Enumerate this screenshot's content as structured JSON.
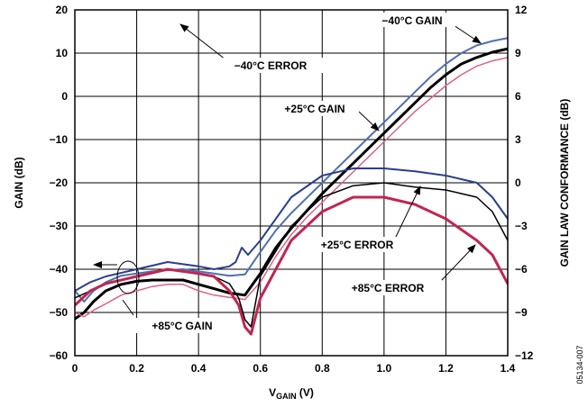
{
  "figure_id": "05134-007",
  "chart_data": {
    "type": "line",
    "xlabel_main": "V",
    "xlabel_sub": "GAIN",
    "xlabel_unit": " (V)",
    "ylabel_left": "GAIN (dB)",
    "ylabel_right": "GAIN LAW CONFORMANCE (dB)",
    "xlim": [
      0,
      1.4
    ],
    "ylim_left": [
      -60,
      20
    ],
    "ylim_right": [
      -12,
      12
    ],
    "grid": true,
    "x_ticks": [
      "0",
      "0.2",
      "0.4",
      "0.6",
      "0.8",
      "1.0",
      "1.2",
      "1.4"
    ],
    "y_left_ticks": [
      "20",
      "10",
      "0",
      "−10",
      "−20",
      "−30",
      "−40",
      "−50",
      "−60"
    ],
    "y_right_ticks": [
      "12",
      "9",
      "6",
      "3",
      "0",
      "−3",
      "−6",
      "−9",
      "−12"
    ],
    "series": [
      {
        "name": "−40°C GAIN",
        "axis": "left",
        "color": "#4f6fae",
        "width": 2,
        "points": [
          [
            0,
            -45
          ],
          [
            0.03,
            -47.5
          ],
          [
            0.06,
            -45
          ],
          [
            0.1,
            -43
          ],
          [
            0.15,
            -41.5
          ],
          [
            0.2,
            -41
          ],
          [
            0.25,
            -40.5
          ],
          [
            0.3,
            -40.2
          ],
          [
            0.35,
            -40
          ],
          [
            0.4,
            -40.5
          ],
          [
            0.45,
            -41
          ],
          [
            0.5,
            -41.5
          ],
          [
            0.55,
            -41.2
          ],
          [
            0.6,
            -36
          ],
          [
            0.65,
            -31
          ],
          [
            0.7,
            -27
          ],
          [
            0.75,
            -23.5
          ],
          [
            0.8,
            -20
          ],
          [
            0.85,
            -16.5
          ],
          [
            0.9,
            -13
          ],
          [
            0.95,
            -9.5
          ],
          [
            1.0,
            -6
          ],
          [
            1.05,
            -2.5
          ],
          [
            1.1,
            1
          ],
          [
            1.15,
            4.5
          ],
          [
            1.2,
            7.5
          ],
          [
            1.25,
            10
          ],
          [
            1.3,
            11.8
          ],
          [
            1.35,
            12.8
          ],
          [
            1.4,
            13.5
          ]
        ]
      },
      {
        "name": "+25°C GAIN",
        "axis": "left",
        "color": "#000000",
        "width": 3,
        "points": [
          [
            0,
            -51.5
          ],
          [
            0.03,
            -50
          ],
          [
            0.06,
            -47.5
          ],
          [
            0.1,
            -45
          ],
          [
            0.15,
            -43.5
          ],
          [
            0.2,
            -42.8
          ],
          [
            0.25,
            -42.5
          ],
          [
            0.3,
            -42.5
          ],
          [
            0.35,
            -42.5
          ],
          [
            0.4,
            -43.5
          ],
          [
            0.45,
            -44.5
          ],
          [
            0.5,
            -45.5
          ],
          [
            0.55,
            -46
          ],
          [
            0.6,
            -41
          ],
          [
            0.65,
            -35
          ],
          [
            0.7,
            -30.5
          ],
          [
            0.75,
            -26.5
          ],
          [
            0.8,
            -22.5
          ],
          [
            0.85,
            -19
          ],
          [
            0.9,
            -15.5
          ],
          [
            0.95,
            -12
          ],
          [
            1.0,
            -8.5
          ],
          [
            1.05,
            -5
          ],
          [
            1.1,
            -1.5
          ],
          [
            1.15,
            2
          ],
          [
            1.2,
            5
          ],
          [
            1.25,
            7.5
          ],
          [
            1.3,
            9
          ],
          [
            1.35,
            10.2
          ],
          [
            1.4,
            11
          ]
        ]
      },
      {
        "name": "+85°C GAIN",
        "axis": "left",
        "color": "#d9628a",
        "width": 1.5,
        "points": [
          [
            0,
            -50
          ],
          [
            0.03,
            -51
          ],
          [
            0.06,
            -49.5
          ],
          [
            0.1,
            -48
          ],
          [
            0.15,
            -46
          ],
          [
            0.2,
            -45
          ],
          [
            0.25,
            -44
          ],
          [
            0.3,
            -43.5
          ],
          [
            0.35,
            -43.5
          ],
          [
            0.4,
            -45
          ],
          [
            0.45,
            -46
          ],
          [
            0.5,
            -46.5
          ],
          [
            0.55,
            -47
          ],
          [
            0.6,
            -43
          ],
          [
            0.65,
            -37
          ],
          [
            0.7,
            -32
          ],
          [
            0.75,
            -28
          ],
          [
            0.8,
            -24.5
          ],
          [
            0.85,
            -21
          ],
          [
            0.9,
            -17.5
          ],
          [
            0.95,
            -14
          ],
          [
            1.0,
            -10.5
          ],
          [
            1.05,
            -7
          ],
          [
            1.1,
            -3.5
          ],
          [
            1.15,
            -0.5
          ],
          [
            1.2,
            2.5
          ],
          [
            1.25,
            5
          ],
          [
            1.3,
            7
          ],
          [
            1.35,
            8.2
          ],
          [
            1.4,
            9
          ]
        ]
      },
      {
        "name": "−40°C ERROR",
        "axis": "right",
        "color": "#2a3f8f",
        "width": 2,
        "points": [
          [
            0,
            -7.5
          ],
          [
            0.05,
            -6.9
          ],
          [
            0.1,
            -6.5
          ],
          [
            0.2,
            -6
          ],
          [
            0.3,
            -5.5
          ],
          [
            0.4,
            -5.8
          ],
          [
            0.45,
            -6
          ],
          [
            0.5,
            -5.8
          ],
          [
            0.52,
            -5.5
          ],
          [
            0.53,
            -5
          ],
          [
            0.54,
            -4.5
          ],
          [
            0.56,
            -5
          ],
          [
            0.6,
            -4
          ],
          [
            0.7,
            -1
          ],
          [
            0.8,
            0.5
          ],
          [
            0.9,
            1
          ],
          [
            1.0,
            1
          ],
          [
            1.1,
            0.8
          ],
          [
            1.2,
            0.5
          ],
          [
            1.3,
            0
          ],
          [
            1.35,
            -1
          ],
          [
            1.4,
            -2.5
          ]
        ]
      },
      {
        "name": "+25°C ERROR",
        "axis": "right",
        "color": "#000000",
        "width": 1.5,
        "points": [
          [
            0,
            -8
          ],
          [
            0.05,
            -7.5
          ],
          [
            0.1,
            -7
          ],
          [
            0.2,
            -6.5
          ],
          [
            0.3,
            -6
          ],
          [
            0.4,
            -6.3
          ],
          [
            0.45,
            -6.5
          ],
          [
            0.5,
            -7
          ],
          [
            0.53,
            -8
          ],
          [
            0.55,
            -9.5
          ],
          [
            0.57,
            -10
          ],
          [
            0.6,
            -6.5
          ],
          [
            0.7,
            -3
          ],
          [
            0.8,
            -1
          ],
          [
            0.9,
            -0.2
          ],
          [
            1.0,
            0
          ],
          [
            1.1,
            -0.3
          ],
          [
            1.2,
            -0.5
          ],
          [
            1.3,
            -1
          ],
          [
            1.35,
            -2
          ],
          [
            1.4,
            -4
          ]
        ]
      },
      {
        "name": "+85°C ERROR",
        "axis": "right",
        "color": "#c02650",
        "width": 3,
        "points": [
          [
            0,
            -8.5
          ],
          [
            0.05,
            -7.5
          ],
          [
            0.1,
            -7
          ],
          [
            0.2,
            -6.5
          ],
          [
            0.3,
            -6
          ],
          [
            0.4,
            -6.3
          ],
          [
            0.45,
            -6.5
          ],
          [
            0.5,
            -7.5
          ],
          [
            0.53,
            -8.5
          ],
          [
            0.55,
            -10
          ],
          [
            0.57,
            -10.5
          ],
          [
            0.6,
            -8
          ],
          [
            0.7,
            -4
          ],
          [
            0.8,
            -2
          ],
          [
            0.9,
            -1
          ],
          [
            1.0,
            -1
          ],
          [
            1.1,
            -1.5
          ],
          [
            1.2,
            -2.5
          ],
          [
            1.3,
            -4
          ],
          [
            1.35,
            -5
          ],
          [
            1.4,
            -7
          ]
        ]
      }
    ],
    "annotations": [
      {
        "text": "−40°C GAIN"
      },
      {
        "text": "−40°C ERROR"
      },
      {
        "text": "+25°C GAIN"
      },
      {
        "text": "+25°C ERROR"
      },
      {
        "text": "+85°C ERROR"
      },
      {
        "text": "+85°C GAIN"
      }
    ]
  }
}
